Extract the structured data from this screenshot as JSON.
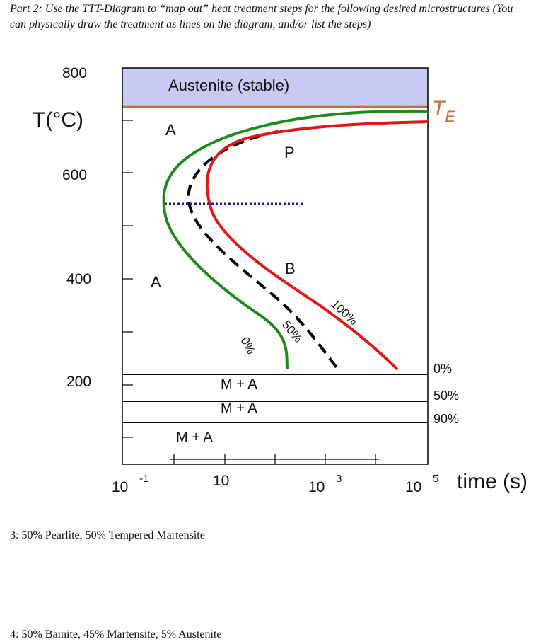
{
  "intro": "Part 2: Use the TTT-Diagram to “map out” heat treatment steps for the following desired microstructures (You can physically draw the treatment as lines on the diagram, and/or list the steps)",
  "diagram": {
    "y_axis_label": "T(°C)",
    "y_tick_labels": [
      "800",
      "600",
      "400",
      "200"
    ],
    "x_axis_label": "time (s)",
    "x_tick_labels": [
      {
        "base": "10",
        "exp": "-1"
      },
      {
        "base": "10",
        "exp": ""
      },
      {
        "base": "10",
        "exp": "3"
      },
      {
        "base": "10",
        "exp": "5"
      }
    ],
    "stable_region_label": "Austenite (stable)",
    "te_label": {
      "main": "T",
      "sub": "E"
    },
    "region_labels": {
      "austenite_upper": "A",
      "austenite_lower": "A",
      "pearlite": "P",
      "bainite": "B",
      "martensite_1": "M + A",
      "martensite_2": "M + A",
      "martensite_3": "M + A"
    },
    "curve_labels": {
      "start": "0%",
      "half": "50%",
      "finish": "100%"
    },
    "martensite_line_labels": [
      "0%",
      "50%",
      "90%"
    ],
    "colors": {
      "stable_region": "#c9c9f5",
      "te_line": "#c0703a",
      "start_curve": "#1e8a1e",
      "finish_curve": "#e01818",
      "half_curve": "#000000",
      "dotted_line": "#2a0f8c"
    }
  },
  "questions": {
    "q3": "3: 50% Pearlite, 50% Tempered Martensite",
    "q4": "4: 50% Bainite, 45% Martensite, 5% Austenite"
  }
}
